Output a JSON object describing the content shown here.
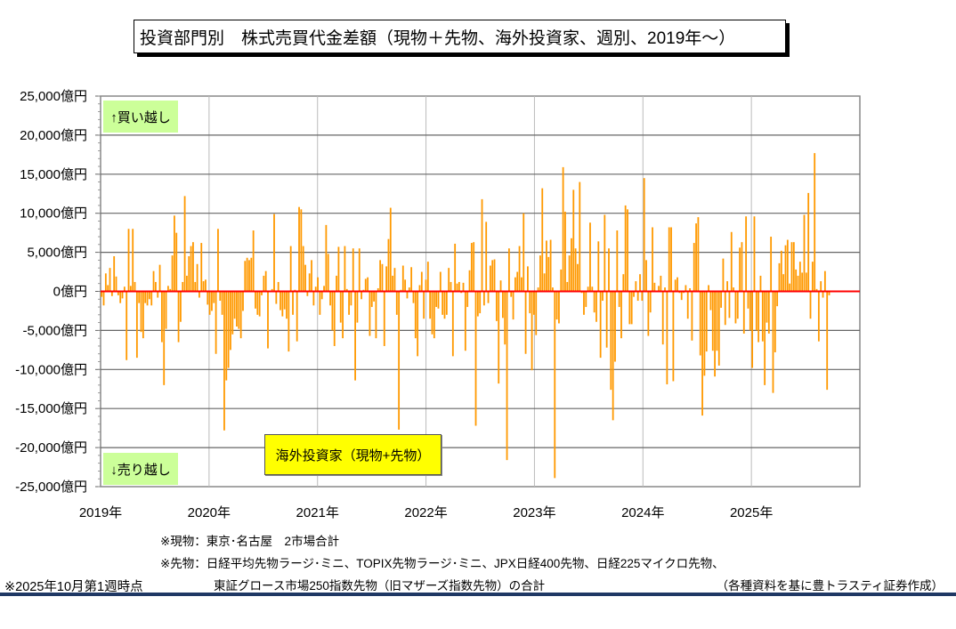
{
  "title": "投資部門別　株式売買代金差額（現物＋先物、海外投資家、週別、2019年～）",
  "annotations": {
    "buy": "↑買い越し",
    "sell": "↓売り越し",
    "legend": "海外投資家（現物+先物）"
  },
  "footnotes": {
    "spot": "※現物：東京･名古屋　2市場合計",
    "futures": "※先物：日経平均先物ラージ･ミニ、TOPIX先物ラージ･ミニ、JPX日経400先物、日経225マイクロ先物、",
    "futures2": "東証グロース市場250指数先物（旧マザーズ指数先物）の合計",
    "asof": "※2025年10月第1週時点",
    "source": "（各種資料を基に豊トラスティ証券作成）"
  },
  "colors": {
    "bar": "#FF9900",
    "zero_line": "#FF0000",
    "buy_box": "#CCFF99",
    "legend_box": "#FFFF00",
    "rule": "#1F3864"
  },
  "chart_data": {
    "type": "bar",
    "frequency": "weekly",
    "series": [
      {
        "name": "海外投資家（現物+先物）",
        "unit": "億円",
        "values": [
          -700,
          -1800,
          2300,
          800,
          3000,
          -600,
          4500,
          1900,
          -500,
          -1500,
          -900,
          600,
          -8800,
          8000,
          700,
          8000,
          1200,
          -8500,
          -1500,
          -5200,
          -6000,
          -1500,
          -1800,
          -1000,
          -1800,
          2600,
          1200,
          -800,
          3400,
          -6500,
          -12000,
          -4800,
          700,
          300,
          4600,
          9700,
          7500,
          -6500,
          -3900,
          1200,
          12200,
          2000,
          4500,
          5800,
          6300,
          1200,
          3500,
          -800,
          6200,
          1300,
          1500,
          -1700,
          -3000,
          -2500,
          -1500,
          -8000,
          8000,
          -1200,
          -3000,
          -17800,
          -11400,
          -9800,
          -7500,
          -5500,
          -3500,
          -4500,
          -4800,
          -6000,
          -2500,
          3900,
          4300,
          4000,
          4300,
          7800,
          -2200,
          -3000,
          -3200,
          -500,
          2000,
          2600,
          -7300,
          100,
          300,
          9900,
          -1600,
          1200,
          -2400,
          -3200,
          -2300,
          -3500,
          -7700,
          5800,
          -3000,
          200,
          -6400,
          10800,
          10500,
          5800,
          3400,
          -600,
          2300,
          4000,
          -1800,
          600,
          1800,
          -3000,
          -1000,
          700,
          8500,
          4800,
          -1800,
          -5000,
          -7000,
          2000,
          5700,
          -4000,
          -6000,
          5800,
          300,
          -3000,
          -1800,
          5500,
          -11400,
          -4000,
          5500,
          -1000,
          200,
          1600,
          1800,
          -5700,
          -2000,
          -1300,
          -6000,
          400,
          4000,
          3500,
          -7000,
          3200,
          6700,
          10700,
          2000,
          3000,
          -3000,
          -17700,
          200,
          3300,
          1500,
          -900,
          500,
          3100,
          -1500,
          -6000,
          -8300,
          800,
          2500,
          -3500,
          1500,
          3800,
          -3500,
          -5500,
          -6000,
          -2000,
          -2200,
          2500,
          -3000,
          -3500,
          -3000,
          3000,
          1200,
          -8300,
          6100,
          1000,
          1200,
          -200,
          1100,
          -7600,
          -2000,
          2700,
          6200,
          6300,
          -17200,
          -3200,
          -2800,
          11800,
          -1800,
          8900,
          -1500,
          3300,
          4000,
          4100,
          -3800,
          -11800,
          1400,
          -3400,
          -6800,
          -21600,
          5500,
          -700,
          -3600,
          1800,
          2500,
          5800,
          1800,
          10000,
          -8000,
          3200,
          -2800,
          -10100,
          -3000,
          -5600,
          500,
          4600,
          13200,
          2300,
          6500,
          4400,
          6600,
          500,
          -23900,
          -3600,
          -4100,
          2800,
          15900,
          10200,
          1200,
          4600,
          6800,
          13000,
          5500,
          3500,
          14000,
          -200,
          -3000,
          -2000,
          600,
          8800,
          600,
          -2700,
          -3900,
          6400,
          -8500,
          -1200,
          9800,
          -7200,
          5500,
          -12600,
          -16500,
          -9000,
          7800,
          -2000,
          -6000,
          2200,
          11000,
          10500,
          -4200,
          -4200,
          -700,
          1300,
          -1200,
          2200,
          -1200,
          14500,
          4000,
          -5700,
          -2700,
          8200,
          1100,
          -100,
          700,
          2000,
          -6800,
          500,
          -11900,
          8200,
          8200,
          -11500,
          1500,
          1800,
          -200,
          -1100,
          -200,
          800,
          -3500,
          400,
          -6300,
          6200,
          8700,
          9500,
          -8200,
          -15900,
          -10800,
          -7700,
          800,
          -2400,
          -7600,
          -10900,
          -7600,
          -9500,
          -2100,
          4200,
          -4300,
          1300,
          -3400,
          7600,
          500,
          -4100,
          -3500,
          5600,
          6300,
          -5400,
          9600,
          -2200,
          -5000,
          -9800,
          9600,
          -5000,
          -6500,
          2000,
          -6400,
          -12000,
          -4000,
          -5400,
          7000,
          -13000,
          -7800,
          -1900,
          3600,
          5200,
          2200,
          5900,
          6600,
          1000,
          6300,
          6300,
          2800,
          2000,
          3800,
          2400,
          9800,
          2400,
          12600,
          -3500,
          3800,
          17700,
          300,
          -6400,
          1300,
          -800,
          2600,
          -12600,
          -500
        ]
      }
    ],
    "x_ticks": [
      {
        "year": 2019,
        "label": "2019年"
      },
      {
        "year": 2020,
        "label": "2020年"
      },
      {
        "year": 2021,
        "label": "2021年"
      },
      {
        "year": 2022,
        "label": "2022年"
      },
      {
        "year": 2023,
        "label": "2023年"
      },
      {
        "year": 2024,
        "label": "2024年"
      },
      {
        "year": 2025,
        "label": "2025年"
      }
    ],
    "xlim": [
      2019,
      2026
    ],
    "y_ticks": [
      {
        "value": 25000,
        "label": "25,000億円"
      },
      {
        "value": 20000,
        "label": "20,000億円"
      },
      {
        "value": 15000,
        "label": "15,000億円"
      },
      {
        "value": 10000,
        "label": "10,000億円"
      },
      {
        "value": 5000,
        "label": "5,000億円"
      },
      {
        "value": 0,
        "label": "0億円"
      },
      {
        "value": -5000,
        "label": "-5,000億円"
      },
      {
        "value": -10000,
        "label": "-10,000億円"
      },
      {
        "value": -15000,
        "label": "-15,000億円"
      },
      {
        "value": -20000,
        "label": "-20,000億円"
      },
      {
        "value": -25000,
        "label": "-25,000億円"
      }
    ],
    "ylim": [
      -25000,
      25000
    ],
    "grid": true,
    "legend": "bottom-center"
  }
}
